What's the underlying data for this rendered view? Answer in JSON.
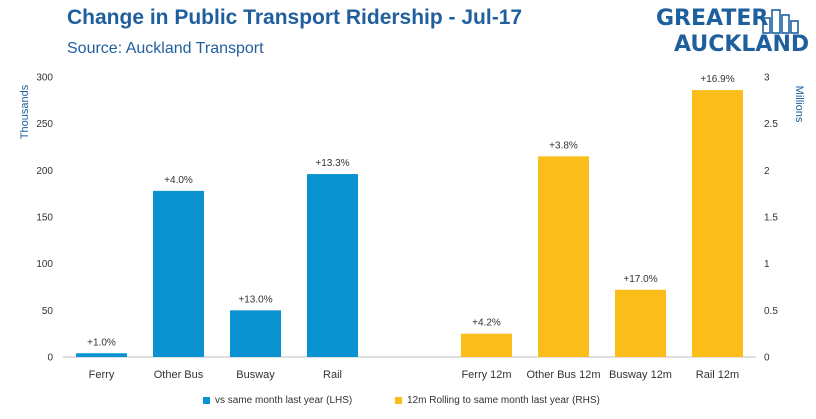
{
  "header": {
    "title": "Change in Public Transport Ridership - Jul-17",
    "subtitle": "Source: Auckland Transport"
  },
  "logo": {
    "line1": "GREATER",
    "line2": "AUCKLAND",
    "icon": "city-skyline-icon"
  },
  "colors": {
    "lhs": "#0a93d0",
    "rhs": "#fbbd19",
    "brand": "#1f5f9e"
  },
  "chart_data": {
    "type": "bar",
    "categories": [
      "Ferry",
      "Other Bus",
      "Busway",
      "Rail",
      "Ferry 12m",
      "Other Bus 12m",
      "Busway 12m",
      "Rail 12m"
    ],
    "series": [
      {
        "name": "vs same month last year (LHS)",
        "axis": "left",
        "values": [
          4,
          178,
          50,
          196,
          null,
          null,
          null,
          null
        ],
        "labels": [
          "+1.0%",
          "+4.0%",
          "+13.0%",
          "+13.3%",
          "",
          "",
          "",
          ""
        ]
      },
      {
        "name": "12m Rolling to same month last year (RHS)",
        "axis": "right",
        "values": [
          null,
          null,
          null,
          null,
          0.25,
          2.15,
          0.72,
          2.86
        ],
        "labels": [
          "",
          "",
          "",
          "",
          "+4.2%",
          "+3.8%",
          "+17.0%",
          "+16.9%"
        ]
      }
    ],
    "y_left": {
      "label": "Thousands",
      "range": [
        0,
        300
      ],
      "ticks": [
        0,
        50,
        100,
        150,
        200,
        250,
        300
      ]
    },
    "y_right": {
      "label": "Millions",
      "range": [
        0,
        3
      ],
      "ticks": [
        "0",
        "0.5",
        "1",
        "1.5",
        "2",
        "2.5",
        "3"
      ]
    },
    "grid": false,
    "legend_position": "bottom"
  }
}
